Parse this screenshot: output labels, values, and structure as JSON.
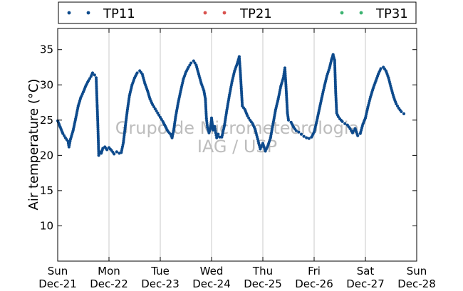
{
  "chart_data": {
    "type": "scatter",
    "ylabel": "Air temperature (°C)",
    "xlabel": "",
    "x_unit": "days",
    "xlim": [
      0,
      7
    ],
    "ylim": [
      5,
      38
    ],
    "yticks": [
      10,
      15,
      20,
      25,
      30,
      35
    ],
    "xticks": [
      {
        "x": 0,
        "day": "Sun",
        "date": "Dec-21"
      },
      {
        "x": 1,
        "day": "Mon",
        "date": "Dec-22"
      },
      {
        "x": 2,
        "day": "Tue",
        "date": "Dec-23"
      },
      {
        "x": 3,
        "day": "Wed",
        "date": "Dec-24"
      },
      {
        "x": 4,
        "day": "Thu",
        "date": "Dec-25"
      },
      {
        "x": 5,
        "day": "Fri",
        "date": "Dec-26"
      },
      {
        "x": 6,
        "day": "Sat",
        "date": "Dec-27"
      },
      {
        "x": 7,
        "day": "Sun",
        "date": "Dec-28"
      }
    ],
    "grid": "vertical",
    "legend_position": "top",
    "watermark": [
      "Grupo de Micrometeorologia",
      "IAG / USP"
    ],
    "series": [
      {
        "name": "TP11",
        "color": "#0d4a8c",
        "points": [
          [
            0.0,
            24.9
          ],
          [
            0.05,
            24.0
          ],
          [
            0.1,
            23.1
          ],
          [
            0.15,
            22.5
          ],
          [
            0.2,
            22.0
          ],
          [
            0.22,
            21.2
          ],
          [
            0.25,
            22.3
          ],
          [
            0.3,
            23.5
          ],
          [
            0.35,
            25.2
          ],
          [
            0.4,
            27.0
          ],
          [
            0.45,
            28.2
          ],
          [
            0.5,
            29.0
          ],
          [
            0.55,
            29.9
          ],
          [
            0.6,
            30.6
          ],
          [
            0.65,
            31.2
          ],
          [
            0.68,
            31.7
          ],
          [
            0.72,
            31.4
          ],
          [
            0.75,
            31.0
          ],
          [
            0.76,
            29.0
          ],
          [
            0.77,
            27.0
          ],
          [
            0.78,
            25.0
          ],
          [
            0.79,
            22.6
          ],
          [
            0.8,
            20.0
          ],
          [
            0.82,
            20.5
          ],
          [
            0.85,
            20.3
          ],
          [
            0.88,
            21.0
          ],
          [
            0.92,
            21.2
          ],
          [
            0.96,
            20.8
          ],
          [
            1.0,
            21.1
          ],
          [
            1.05,
            20.7
          ],
          [
            1.1,
            20.2
          ],
          [
            1.15,
            20.5
          ],
          [
            1.2,
            20.3
          ],
          [
            1.24,
            20.4
          ],
          [
            1.28,
            21.8
          ],
          [
            1.32,
            24.2
          ],
          [
            1.36,
            26.5
          ],
          [
            1.4,
            28.5
          ],
          [
            1.45,
            30.0
          ],
          [
            1.5,
            31.0
          ],
          [
            1.55,
            31.7
          ],
          [
            1.6,
            32.0
          ],
          [
            1.65,
            31.5
          ],
          [
            1.7,
            30.2
          ],
          [
            1.75,
            29.2
          ],
          [
            1.8,
            28.0
          ],
          [
            1.85,
            27.2
          ],
          [
            1.9,
            26.6
          ],
          [
            1.95,
            26.0
          ],
          [
            2.0,
            25.4
          ],
          [
            2.05,
            24.8
          ],
          [
            2.1,
            24.1
          ],
          [
            2.15,
            23.4
          ],
          [
            2.2,
            23.0
          ],
          [
            2.23,
            22.5
          ],
          [
            2.26,
            23.5
          ],
          [
            2.3,
            25.5
          ],
          [
            2.35,
            27.5
          ],
          [
            2.4,
            29.2
          ],
          [
            2.45,
            30.8
          ],
          [
            2.5,
            31.8
          ],
          [
            2.55,
            32.5
          ],
          [
            2.6,
            33.1
          ],
          [
            2.65,
            33.4
          ],
          [
            2.7,
            32.8
          ],
          [
            2.75,
            31.5
          ],
          [
            2.8,
            30.2
          ],
          [
            2.85,
            29.2
          ],
          [
            2.88,
            28.0
          ],
          [
            2.9,
            25.2
          ],
          [
            2.92,
            24.0
          ],
          [
            2.95,
            23.2
          ],
          [
            2.98,
            23.9
          ],
          [
            3.0,
            25.3
          ],
          [
            3.03,
            23.6
          ],
          [
            3.06,
            24.1
          ],
          [
            3.08,
            23.2
          ],
          [
            3.1,
            22.5
          ],
          [
            3.13,
            23.0
          ],
          [
            3.16,
            22.6
          ],
          [
            3.2,
            22.6
          ],
          [
            3.25,
            24.2
          ],
          [
            3.3,
            26.5
          ],
          [
            3.35,
            28.6
          ],
          [
            3.4,
            30.5
          ],
          [
            3.45,
            32.0
          ],
          [
            3.5,
            33.0
          ],
          [
            3.54,
            34.0
          ],
          [
            3.56,
            32.0
          ],
          [
            3.58,
            29.5
          ],
          [
            3.6,
            27.0
          ],
          [
            3.65,
            26.5
          ],
          [
            3.7,
            25.6
          ],
          [
            3.75,
            25.0
          ],
          [
            3.8,
            24.5
          ],
          [
            3.85,
            23.7
          ],
          [
            3.9,
            22.3
          ],
          [
            3.95,
            20.9
          ],
          [
            4.0,
            21.7
          ],
          [
            4.05,
            20.6
          ],
          [
            4.1,
            21.4
          ],
          [
            4.15,
            22.5
          ],
          [
            4.2,
            24.5
          ],
          [
            4.25,
            26.5
          ],
          [
            4.3,
            28.0
          ],
          [
            4.35,
            29.8
          ],
          [
            4.4,
            31.0
          ],
          [
            4.43,
            32.4
          ],
          [
            4.45,
            30.0
          ],
          [
            4.48,
            26.0
          ],
          [
            4.5,
            25.0
          ],
          [
            4.55,
            24.7
          ],
          [
            4.6,
            24.0
          ],
          [
            4.65,
            23.5
          ],
          [
            4.7,
            23.3
          ],
          [
            4.75,
            23.0
          ],
          [
            4.8,
            22.7
          ],
          [
            4.85,
            22.5
          ],
          [
            4.9,
            22.4
          ],
          [
            4.95,
            22.6
          ],
          [
            5.0,
            23.3
          ],
          [
            5.05,
            24.8
          ],
          [
            5.1,
            26.5
          ],
          [
            5.15,
            28.2
          ],
          [
            5.2,
            29.8
          ],
          [
            5.25,
            31.3
          ],
          [
            5.3,
            32.4
          ],
          [
            5.34,
            33.6
          ],
          [
            5.37,
            34.3
          ],
          [
            5.4,
            33.5
          ],
          [
            5.42,
            29.0
          ],
          [
            5.44,
            26.0
          ],
          [
            5.47,
            25.5
          ],
          [
            5.5,
            25.2
          ],
          [
            5.55,
            24.8
          ],
          [
            5.6,
            24.5
          ],
          [
            5.65,
            24.3
          ],
          [
            5.7,
            23.8
          ],
          [
            5.75,
            23.2
          ],
          [
            5.8,
            23.8
          ],
          [
            5.85,
            22.8
          ],
          [
            5.9,
            23.1
          ],
          [
            5.95,
            24.4
          ],
          [
            6.0,
            25.3
          ],
          [
            6.05,
            26.9
          ],
          [
            6.1,
            28.3
          ],
          [
            6.15,
            29.5
          ],
          [
            6.2,
            30.5
          ],
          [
            6.25,
            31.5
          ],
          [
            6.3,
            32.3
          ],
          [
            6.35,
            32.5
          ],
          [
            6.4,
            32.0
          ],
          [
            6.45,
            31.0
          ],
          [
            6.5,
            29.6
          ],
          [
            6.55,
            28.3
          ],
          [
            6.6,
            27.3
          ],
          [
            6.65,
            26.7
          ],
          [
            6.7,
            26.2
          ],
          [
            6.75,
            25.9
          ]
        ]
      },
      {
        "name": "TP21",
        "color": "#d9534f",
        "points": []
      },
      {
        "name": "TP31",
        "color": "#3cb371",
        "points": []
      }
    ]
  }
}
